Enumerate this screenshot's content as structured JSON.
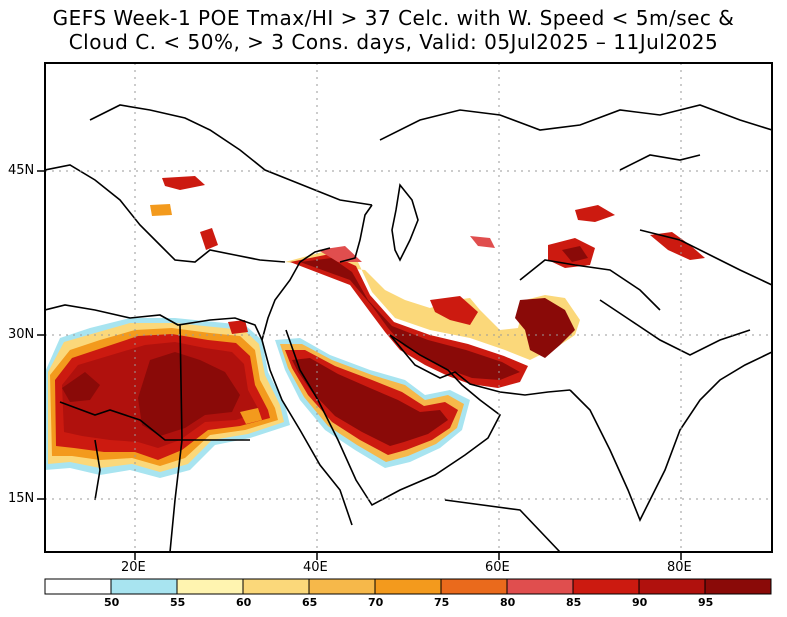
{
  "title": {
    "line1": "GEFS Week-1 POE Tmax/HI > 37 Celc. with W. Speed < 5m/sec &",
    "line2": "Cloud C. < 50%, > 3 Cons. days, Valid: 05Jul2025 – 11Jul2025"
  },
  "map": {
    "x_ticks": [
      "20E",
      "40E",
      "60E",
      "80E"
    ],
    "y_ticks": [
      "45N",
      "30N",
      "15N"
    ],
    "lon_range": [
      12,
      92
    ],
    "lat_range": [
      9,
      54
    ]
  },
  "colorbar": {
    "thresholds": [
      "50",
      "55",
      "60",
      "65",
      "70",
      "75",
      "80",
      "85",
      "90",
      "95"
    ],
    "colors": [
      "#ffffff",
      "#a8e4f0",
      "#fff4b0",
      "#fbd87a",
      "#f6b84a",
      "#f39a1d",
      "#ea6a1c",
      "#e04e4e",
      "#cc1a10",
      "#b0110d",
      "#8a0a08"
    ]
  }
}
